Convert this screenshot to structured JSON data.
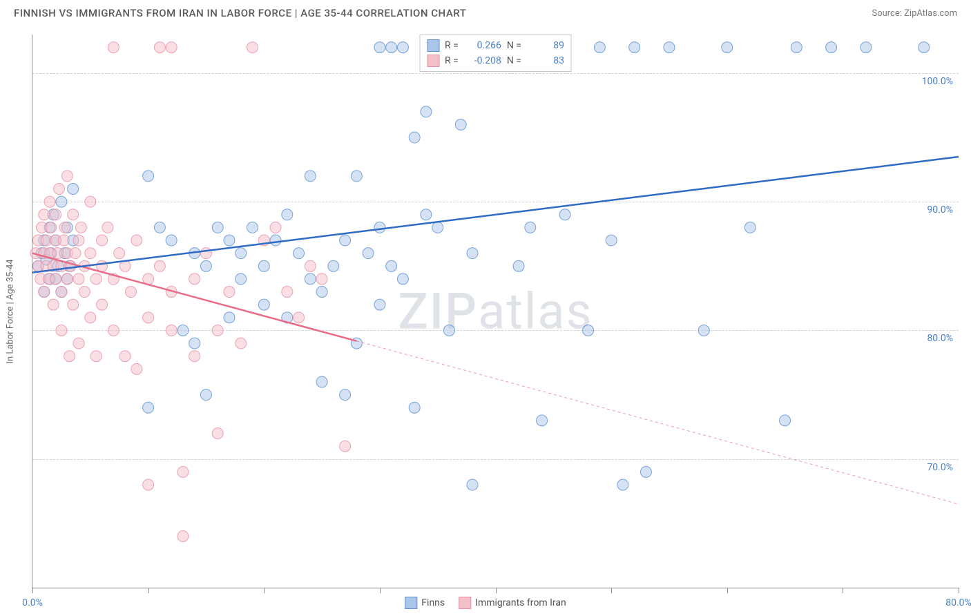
{
  "header": {
    "title": "FINNISH VS IMMIGRANTS FROM IRAN IN LABOR FORCE | AGE 35-44 CORRELATION CHART",
    "source": "Source: ZipAtlas.com"
  },
  "watermark": {
    "prefix": "ZIP",
    "suffix": "atlas"
  },
  "chart": {
    "type": "scatter",
    "background_color": "#ffffff",
    "grid_color": "#d0d0d0",
    "axis_color": "#8a8a8a",
    "tick_label_color": "#4a7fc4",
    "axis_label_color": "#6a6a6a",
    "yaxis_label": "In Labor Force | Age 35-44",
    "xlim": [
      0,
      80
    ],
    "ylim": [
      60,
      103
    ],
    "yticks": [
      70,
      80,
      90,
      100
    ],
    "ytick_labels": [
      "70.0%",
      "80.0%",
      "90.0%",
      "100.0%"
    ],
    "xticks": [
      0,
      10,
      20,
      30,
      40,
      50,
      60,
      70,
      80
    ],
    "xtick_labels": {
      "0": "0.0%",
      "80": "80.0%"
    },
    "marker_radius": 8,
    "marker_opacity": 0.5,
    "line_width": 2.5,
    "series": [
      {
        "name": "Finns",
        "color_fill": "#a9c6ea",
        "color_stroke": "#5a8fd0",
        "line_color": "#2e6bc6",
        "r": 0.266,
        "n": 89,
        "trend": {
          "x1": 0,
          "y1": 84.5,
          "x2": 80,
          "y2": 93.5,
          "solid_until_x": 80
        },
        "points": [
          [
            0.5,
            85
          ],
          [
            0.8,
            86
          ],
          [
            1,
            87
          ],
          [
            1,
            83
          ],
          [
            1.2,
            85.5
          ],
          [
            1.5,
            84
          ],
          [
            1.5,
            88
          ],
          [
            1.6,
            86
          ],
          [
            1.8,
            89
          ],
          [
            2,
            84
          ],
          [
            2,
            87
          ],
          [
            2.2,
            85
          ],
          [
            2.5,
            90
          ],
          [
            2.5,
            83
          ],
          [
            2.8,
            86
          ],
          [
            3,
            88
          ],
          [
            3,
            84
          ],
          [
            3.2,
            85
          ],
          [
            3.5,
            87
          ],
          [
            3.5,
            91
          ],
          [
            10,
            92
          ],
          [
            10,
            74
          ],
          [
            11,
            88
          ],
          [
            12,
            87
          ],
          [
            13,
            80
          ],
          [
            14,
            86
          ],
          [
            14,
            79
          ],
          [
            15,
            85
          ],
          [
            15,
            75
          ],
          [
            16,
            88
          ],
          [
            17,
            81
          ],
          [
            17,
            87
          ],
          [
            18,
            86
          ],
          [
            18,
            84
          ],
          [
            19,
            88
          ],
          [
            20,
            85
          ],
          [
            20,
            82
          ],
          [
            21,
            87
          ],
          [
            22,
            89
          ],
          [
            22,
            81
          ],
          [
            23,
            86
          ],
          [
            24,
            92
          ],
          [
            24,
            84
          ],
          [
            25,
            83
          ],
          [
            25,
            76
          ],
          [
            26,
            85
          ],
          [
            27,
            75
          ],
          [
            27,
            87
          ],
          [
            28,
            92
          ],
          [
            28,
            79
          ],
          [
            29,
            86
          ],
          [
            30,
            88
          ],
          [
            30,
            102
          ],
          [
            30,
            82
          ],
          [
            31,
            102
          ],
          [
            31,
            85
          ],
          [
            32,
            84
          ],
          [
            32,
            102
          ],
          [
            33,
            95
          ],
          [
            33,
            74
          ],
          [
            34,
            89
          ],
          [
            34,
            97
          ],
          [
            35,
            88
          ],
          [
            36,
            102
          ],
          [
            36,
            80
          ],
          [
            37,
            96
          ],
          [
            38,
            86
          ],
          [
            38,
            68
          ],
          [
            40,
            102
          ],
          [
            42,
            85
          ],
          [
            43,
            88
          ],
          [
            44,
            73
          ],
          [
            46,
            89
          ],
          [
            48,
            80
          ],
          [
            49,
            102
          ],
          [
            50,
            87
          ],
          [
            51,
            68
          ],
          [
            52,
            102
          ],
          [
            53,
            69
          ],
          [
            55,
            102
          ],
          [
            58,
            80
          ],
          [
            60,
            102
          ],
          [
            62,
            88
          ],
          [
            65,
            73
          ],
          [
            66,
            102
          ],
          [
            69,
            102
          ],
          [
            72,
            102
          ],
          [
            77,
            102
          ]
        ]
      },
      {
        "name": "Immigrants from Iran",
        "color_fill": "#f3bfc9",
        "color_stroke": "#e88fa2",
        "line_color": "#e86b87",
        "r": -0.208,
        "n": 83,
        "trend": {
          "x1": 0,
          "y1": 86,
          "x2": 80,
          "y2": 66.5,
          "solid_until_x": 28
        },
        "points": [
          [
            0.3,
            86
          ],
          [
            0.5,
            85
          ],
          [
            0.5,
            87
          ],
          [
            0.7,
            84
          ],
          [
            0.8,
            88
          ],
          [
            1,
            86
          ],
          [
            1,
            83
          ],
          [
            1,
            89
          ],
          [
            1.2,
            85
          ],
          [
            1.2,
            87
          ],
          [
            1.4,
            84
          ],
          [
            1.5,
            90
          ],
          [
            1.5,
            86
          ],
          [
            1.6,
            88
          ],
          [
            1.8,
            85
          ],
          [
            1.8,
            82
          ],
          [
            2,
            87
          ],
          [
            2,
            89
          ],
          [
            2,
            84
          ],
          [
            2.2,
            86
          ],
          [
            2.3,
            91
          ],
          [
            2.5,
            85
          ],
          [
            2.5,
            83
          ],
          [
            2.5,
            80
          ],
          [
            2.7,
            87
          ],
          [
            2.8,
            88
          ],
          [
            3,
            92
          ],
          [
            3,
            86
          ],
          [
            3,
            84
          ],
          [
            3.2,
            78
          ],
          [
            3.3,
            85
          ],
          [
            3.5,
            89
          ],
          [
            3.5,
            82
          ],
          [
            3.7,
            86
          ],
          [
            4,
            87
          ],
          [
            4,
            79
          ],
          [
            4,
            84
          ],
          [
            4.2,
            88
          ],
          [
            4.5,
            83
          ],
          [
            4.5,
            85
          ],
          [
            5,
            90
          ],
          [
            5,
            86
          ],
          [
            5,
            81
          ],
          [
            5.5,
            78
          ],
          [
            5.5,
            84
          ],
          [
            6,
            87
          ],
          [
            6,
            85
          ],
          [
            6,
            82
          ],
          [
            6.5,
            88
          ],
          [
            7,
            102
          ],
          [
            7,
            84
          ],
          [
            7,
            80
          ],
          [
            7.5,
            86
          ],
          [
            8,
            78
          ],
          [
            8,
            85
          ],
          [
            8.5,
            83
          ],
          [
            9,
            87
          ],
          [
            9,
            77
          ],
          [
            10,
            84
          ],
          [
            10,
            81
          ],
          [
            10,
            68
          ],
          [
            11,
            102
          ],
          [
            11,
            85
          ],
          [
            12,
            80
          ],
          [
            12,
            83
          ],
          [
            12,
            102
          ],
          [
            13,
            64
          ],
          [
            13,
            69
          ],
          [
            14,
            78
          ],
          [
            14,
            84
          ],
          [
            15,
            86
          ],
          [
            16,
            80
          ],
          [
            16,
            72
          ],
          [
            17,
            83
          ],
          [
            18,
            79
          ],
          [
            19,
            102
          ],
          [
            20,
            87
          ],
          [
            21,
            88
          ],
          [
            22,
            83
          ],
          [
            23,
            81
          ],
          [
            24,
            85
          ],
          [
            25,
            84
          ],
          [
            27,
            71
          ]
        ]
      }
    ]
  },
  "legend_top": {
    "r_label": "R =",
    "n_label": "N ="
  },
  "legend_bottom": {
    "items": [
      "Finns",
      "Immigrants from Iran"
    ]
  }
}
